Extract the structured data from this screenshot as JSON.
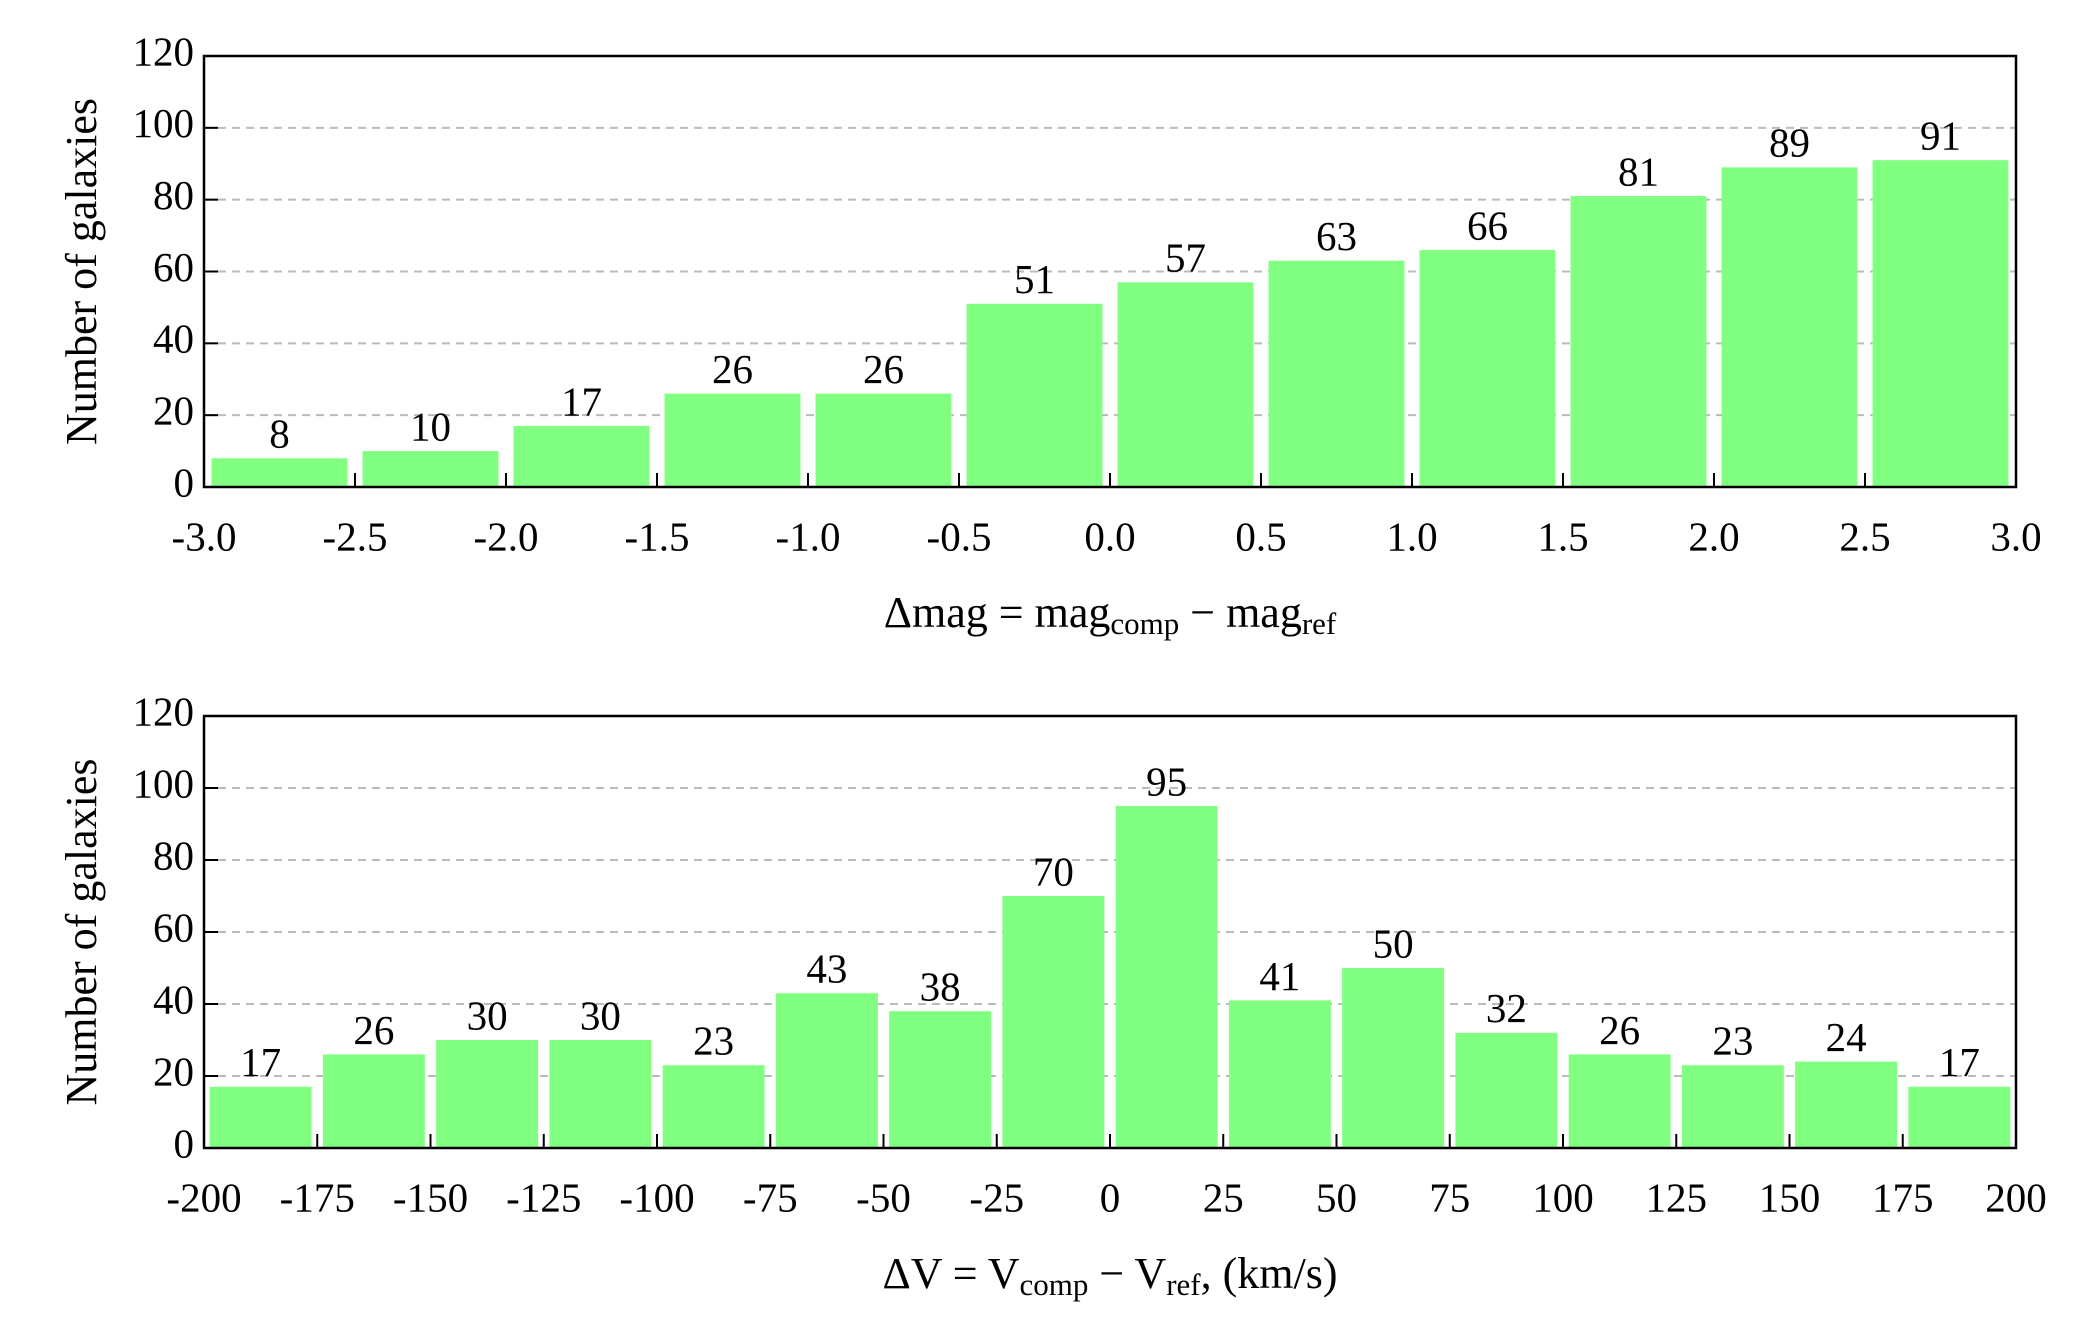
{
  "chart_data": [
    {
      "type": "histogram",
      "bins": [
        -3.0,
        -2.5,
        -2.0,
        -1.5,
        -1.0,
        -0.5,
        0.0,
        0.5,
        1.0,
        1.5,
        2.0,
        2.5,
        3.0
      ],
      "values": [
        8,
        10,
        17,
        26,
        26,
        51,
        57,
        63,
        66,
        81,
        89,
        91
      ],
      "color": "#80ff80",
      "xlim": [
        -3,
        3
      ],
      "xticks": [
        {
          "value": -3,
          "label": "-3.0"
        },
        -2.5,
        {
          "value": -2,
          "label": "-2.0"
        },
        -1.5,
        {
          "value": -1,
          "label": "-1.0"
        },
        -0.5,
        {
          "value": 0,
          "label": "0.0"
        },
        0.5,
        {
          "value": 1,
          "label": "1.0"
        },
        1.5,
        {
          "value": 2,
          "label": "2.0"
        },
        2.5,
        {
          "value": 3,
          "label": "3.0"
        }
      ],
      "ylim": [
        0,
        120
      ],
      "yticks": [
        0,
        20,
        40,
        60,
        80,
        100,
        120
      ],
      "grid": true,
      "ylabel": "Number of galaxies",
      "xlabel": [
        "Δmag = mag",
        "comp",
        " − mag",
        "ref"
      ]
    },
    {
      "type": "histogram",
      "bins": [
        -200,
        -175,
        -150,
        -125,
        -100,
        -75,
        -50,
        -25,
        0,
        25,
        50,
        75,
        100,
        125,
        150,
        175,
        200
      ],
      "values": [
        17,
        26,
        30,
        30,
        23,
        43,
        38,
        70,
        95,
        41,
        50,
        32,
        26,
        23,
        24,
        17
      ],
      "color": "#80ff80",
      "xlim": [
        -200,
        200
      ],
      "xticks": [
        -200,
        -175,
        -150,
        -125,
        -100,
        -75,
        -50,
        -25,
        0,
        25,
        50,
        75,
        100,
        125,
        150,
        175,
        200
      ],
      "ylim": [
        0,
        120
      ],
      "yticks": [
        0,
        20,
        40,
        60,
        80,
        100,
        120
      ],
      "grid": true,
      "ylabel": "Number of galaxies",
      "xlabel": [
        "ΔV = V",
        "comp",
        " − V",
        "ref",
        ", (km/s)"
      ]
    }
  ]
}
